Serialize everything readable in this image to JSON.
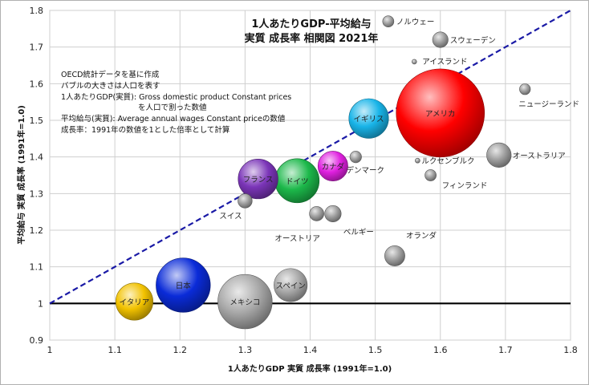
{
  "chart_data": {
    "type": "scatter",
    "title_lines": [
      "1人あたりGDP-平均給与",
      "実質 成長率 相関図 2021年"
    ],
    "xlabel": "1人あたりGDP 実質 成長率 (1991年=1.0)",
    "ylabel": "平均給与 実質 成長率 (1991年=1.0)",
    "xlim": [
      1.0,
      1.8
    ],
    "ylim": [
      0.9,
      1.8
    ],
    "x_ticks": [
      "1",
      "1.1",
      "1.2",
      "1.3",
      "1.4",
      "1.5",
      "1.6",
      "1.7",
      "1.8"
    ],
    "y_ticks": [
      "0.9",
      "1",
      "1.1",
      "1.2",
      "1.3",
      "1.4",
      "1.5",
      "1.6",
      "1.7",
      "1.8"
    ],
    "grid": true,
    "reference_lines": [
      "y=1",
      "y=x"
    ],
    "notes": [
      "OECD統計データを基に作成",
      "バブルの大きさは人口を表す",
      "1人あたりGDP(実質): Gross domestic product Constant prices",
      "を人口で割った数値",
      "平均給与(実質): Average annual wages Constant priceの数値",
      "成長率：1991年の数値を1とした倍率として計算"
    ],
    "points": [
      {
        "label": "ノルウェー",
        "x": 1.52,
        "y": 1.77,
        "population": 5.4,
        "color": "#9e9e9e",
        "label_inside": false
      },
      {
        "label": "スウェーデン",
        "x": 1.6,
        "y": 1.72,
        "population": 10.4,
        "color": "#9e9e9e",
        "label_inside": false
      },
      {
        "label": "アイスランド",
        "x": 1.56,
        "y": 1.66,
        "population": 0.37,
        "color": "#9e9e9e",
        "label_inside": false
      },
      {
        "label": "ニュージーランド",
        "x": 1.73,
        "y": 1.585,
        "population": 5.1,
        "color": "#9e9e9e",
        "label_inside": false
      },
      {
        "label": "アメリカ",
        "x": 1.6,
        "y": 1.52,
        "population": 332,
        "color": "#ff0000",
        "label_inside": true
      },
      {
        "label": "イギリス",
        "x": 1.49,
        "y": 1.505,
        "population": 67,
        "color": "#18b4e8",
        "label_inside": true
      },
      {
        "label": "オーストラリア",
        "x": 1.69,
        "y": 1.405,
        "population": 25.7,
        "color": "#9e9e9e",
        "label_inside": false
      },
      {
        "label": "デンマーク",
        "x": 1.47,
        "y": 1.4,
        "population": 5.8,
        "color": "#9e9e9e",
        "label_inside": false
      },
      {
        "label": "ルクセンブルク",
        "x": 1.565,
        "y": 1.39,
        "population": 0.64,
        "color": "#9e9e9e",
        "label_inside": false
      },
      {
        "label": "カナダ",
        "x": 1.435,
        "y": 1.375,
        "population": 38.2,
        "color": "#e020e0",
        "label_inside": true
      },
      {
        "label": "フィンランド",
        "x": 1.585,
        "y": 1.35,
        "population": 5.5,
        "color": "#9e9e9e",
        "label_inside": false
      },
      {
        "label": "フランス",
        "x": 1.32,
        "y": 1.34,
        "population": 67.5,
        "color": "#7b35b8",
        "label_inside": true
      },
      {
        "label": "ドイツ",
        "x": 1.38,
        "y": 1.335,
        "population": 83.2,
        "color": "#1cb84a",
        "label_inside": true
      },
      {
        "label": "スイス",
        "x": 1.3,
        "y": 1.28,
        "population": 8.7,
        "color": "#9e9e9e",
        "label_inside": false
      },
      {
        "label": "オーストリア",
        "x": 1.41,
        "y": 1.245,
        "population": 8.9,
        "color": "#9e9e9e",
        "label_inside": false
      },
      {
        "label": "ベルギー",
        "x": 1.435,
        "y": 1.245,
        "population": 11.6,
        "color": "#9e9e9e",
        "label_inside": false
      },
      {
        "label": "オランダ",
        "x": 1.53,
        "y": 1.13,
        "population": 17.5,
        "color": "#9e9e9e",
        "label_inside": false
      },
      {
        "label": "日本",
        "x": 1.205,
        "y": 1.05,
        "population": 125.7,
        "color": "#0a2bd8",
        "label_inside": true
      },
      {
        "label": "スペイン",
        "x": 1.37,
        "y": 1.05,
        "population": 47.3,
        "color": "#a8a8a8",
        "label_inside": true
      },
      {
        "label": "メキシコ",
        "x": 1.3,
        "y": 1.005,
        "population": 126,
        "color": "#a8a8a8",
        "label_inside": true
      },
      {
        "label": "イタリア",
        "x": 1.13,
        "y": 1.005,
        "population": 59.1,
        "color": "#f2c200",
        "label_inside": true
      }
    ]
  }
}
